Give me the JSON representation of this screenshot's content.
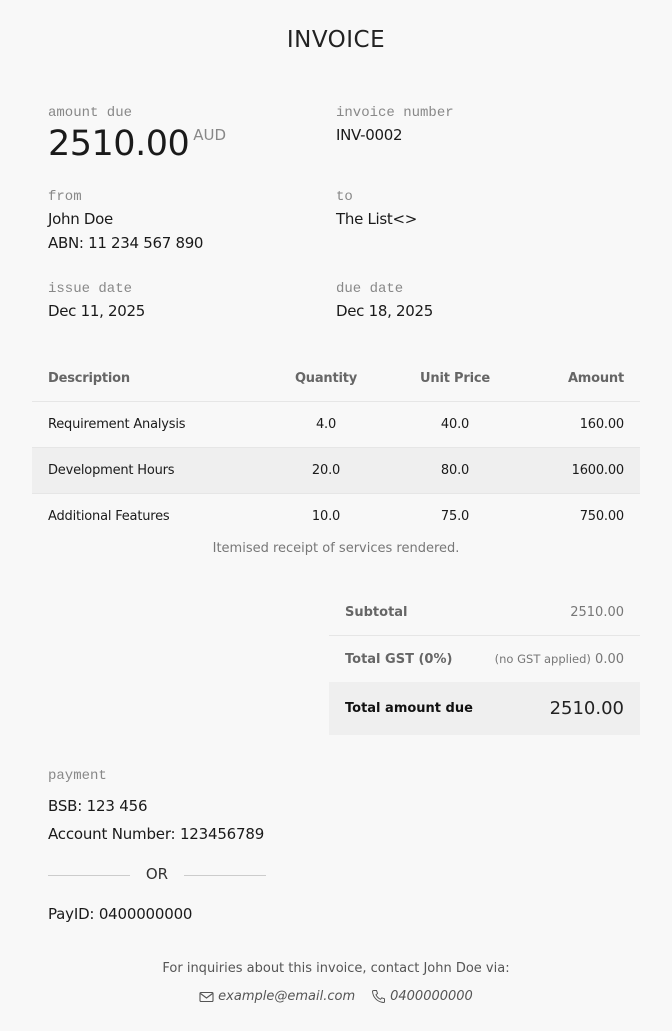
{
  "title": "INVOICE",
  "amount_due": {
    "label": "amount due",
    "value": "2510.00",
    "currency": "AUD"
  },
  "invoice_number": {
    "label": "invoice number",
    "value": "INV-0002"
  },
  "from": {
    "label": "from",
    "name": "John Doe",
    "abn": "ABN: 11 234 567 890"
  },
  "to": {
    "label": "to",
    "name": "The List<>"
  },
  "issue_date": {
    "label": "issue date",
    "value": "Dec 11, 2025"
  },
  "due_date": {
    "label": "due date",
    "value": "Dec 18, 2025"
  },
  "table": {
    "headers": [
      "Description",
      "Quantity",
      "Unit Price",
      "Amount"
    ],
    "rows": [
      [
        "Requirement Analysis",
        "4.0",
        "40.0",
        "160.00"
      ],
      [
        "Development Hours",
        "20.0",
        "80.0",
        "1600.00"
      ],
      [
        "Additional Features",
        "10.0",
        "75.0",
        "750.00"
      ]
    ],
    "caption": "Itemised receipt of services rendered."
  },
  "totals": {
    "subtotal_label": "Subtotal",
    "subtotal": "2510.00",
    "gst_label": "Total GST (0%)",
    "gst_note": "(no GST applied)",
    "gst": "0.00",
    "total_label": "Total amount due",
    "total": "2510.00"
  },
  "payment": {
    "label": "payment",
    "bsb": "BSB: 123 456",
    "account": "Account Number: 123456789",
    "or": "OR",
    "payid": "PayID: 0400000000"
  },
  "footer": {
    "text": "For inquiries about this invoice, contact John Doe via:",
    "email": "example@email.com",
    "phone": "0400000000",
    "email_icon": "envelope-icon",
    "phone_icon": "phone-icon"
  }
}
